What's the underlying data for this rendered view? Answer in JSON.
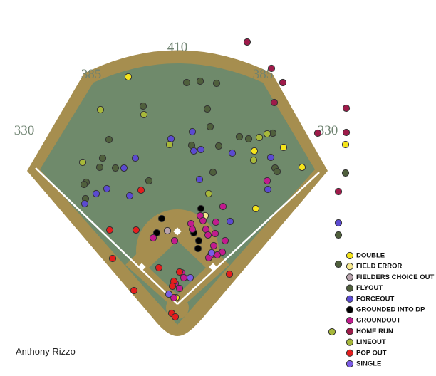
{
  "chart_data": {
    "type": "scatter",
    "title": "Anthony Rizzo",
    "annotations": [
      "330",
      "385",
      "410",
      "385",
      "330"
    ],
    "series": [
      {
        "name": "DOUBLE",
        "color": "#f5e51b",
        "x": [
          -69,
          108,
          149,
          175,
          110,
          236,
          -2
        ],
        "y": [
          319,
          215,
          220,
          192,
          134,
          224,
          9
        ]
      },
      {
        "name": "FIELD ERROR",
        "color": "#f7e98e",
        "x": [
          39
        ],
        "y": [
          124
        ]
      },
      {
        "name": "FIELDERS CHOICE OUT",
        "color": "#b8a3ad",
        "x": [
          -14
        ],
        "y": [
          103
        ]
      },
      {
        "name": "FLYOUT",
        "color": "#4f5f3c",
        "x": [
          13,
          32,
          55,
          -48,
          42,
          -96,
          20,
          46,
          134,
          100,
          58,
          -105,
          -109,
          -87,
          -128,
          -131,
          -40,
          50,
          87,
          137,
          140,
          -129,
          236,
          226,
          226
        ],
        "y": [
          311,
          313,
          310,
          278,
          274,
          231,
          223,
          249,
          240,
          232,
          222,
          205,
          192,
          191,
          171,
          168,
          173,
          185,
          235,
          191,
          186,
          148,
          184,
          97,
          56
        ]
      },
      {
        "name": "FORCEOUT",
        "color": "#5b4ad1",
        "x": [
          -9,
          21,
          23,
          33,
          -59,
          -75,
          -99,
          -114,
          -130,
          -67,
          31,
          77,
          131,
          127,
          74,
          226
        ],
        "y": [
          232,
          242,
          215,
          217,
          205,
          191,
          162,
          155,
          141,
          152,
          175,
          212,
          206,
          161,
          116,
          114
        ]
      },
      {
        "name": "GROUNDED INTO DP",
        "color": "#000000",
        "x": [
          -22,
          -29,
          33,
          23,
          29,
          30
        ],
        "y": [
          120,
          100,
          134,
          100,
          78,
          89
        ]
      },
      {
        "name": "GROUNDOUT",
        "color": "#c21b8e",
        "x": [
          32,
          36,
          64,
          54,
          19,
          21,
          40,
          43,
          53,
          -4,
          -34,
          67,
          51,
          63,
          56,
          47,
          44,
          6,
          9,
          -3,
          3,
          -5,
          126
        ],
        "y": [
          124,
          117,
          137,
          115,
          113,
          105,
          105,
          97,
          99,
          89,
          93,
          89,
          82,
          73,
          69,
          69,
          65,
          44,
          37,
          29,
          22,
          9,
          173
        ]
      },
      {
        "name": "HOME RUN",
        "color": "#9e1b4a",
        "x": [
          98,
          132,
          148,
          136,
          237,
          237,
          197,
          226
        ],
        "y": [
          368,
          331,
          311,
          283,
          275,
          241,
          240,
          158
        ]
      },
      {
        "name": "LINEOUT",
        "color": "#a7b83a",
        "x": [
          -108,
          -47,
          -11,
          115,
          126,
          107,
          44,
          -133,
          217
        ],
        "y": [
          273,
          266,
          224,
          234,
          239,
          202,
          155,
          199,
          -39
        ]
      },
      {
        "name": "POP OUT",
        "color": "#e41d1d",
        "x": [
          -95,
          -58,
          -51,
          -91,
          -61,
          -26,
          3,
          -5,
          -7,
          -8,
          -3,
          73
        ],
        "y": [
          104,
          104,
          160,
          64,
          19,
          51,
          45,
          32,
          25,
          -13,
          -18,
          42
        ]
      },
      {
        "name": "SINGLE",
        "color": "#7b5be6",
        "x": [
          18,
          -12,
          48
        ],
        "y": [
          37,
          14,
          72
        ]
      }
    ]
  }
}
